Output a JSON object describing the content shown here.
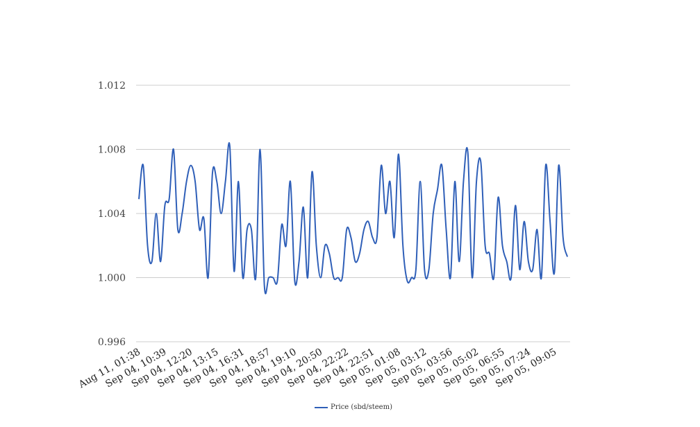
{
  "chart_data": {
    "type": "line",
    "title": "",
    "xlabel": "",
    "ylabel": "",
    "ylim": [
      0.996,
      1.012
    ],
    "y_ticks": [
      "0.996",
      "1.000",
      "1.004",
      "1.008",
      "1.012"
    ],
    "x_tick_labels": [
      "Aug 11, 01:38",
      "Sep 04, 10:39",
      "Sep 04, 12:20",
      "Sep 04, 13:15",
      "Sep 04, 16:31",
      "Sep 04, 18:57",
      "Sep 04, 19:10",
      "Sep 04, 20:50",
      "Sep 04, 22:22",
      "Sep 04, 22:51",
      "Sep 05, 01:08",
      "Sep 05, 03:12",
      "Sep 05, 03:56",
      "Sep 05, 05:02",
      "Sep 05, 06:55",
      "Sep 05, 07:24",
      "Sep 05, 09:05"
    ],
    "grid": true,
    "legend_position": "bottom",
    "series": [
      {
        "name": "Price (sbd/steem)",
        "color": "#2f5fb8",
        "values": [
          1.0049,
          1.007,
          1.002,
          1.001,
          1.004,
          1.001,
          1.0045,
          1.0049,
          1.008,
          1.003,
          1.004,
          1.006,
          1.007,
          1.006,
          1.003,
          1.0037,
          1.0,
          1.0065,
          1.006,
          1.004,
          1.006,
          1.0082,
          1.0004,
          1.006,
          1.0,
          1.003,
          1.003,
          1.0,
          1.008,
          0.9995,
          1.0,
          1.0,
          0.9998,
          1.0033,
          1.002,
          1.006,
          0.9998,
          1.001,
          1.0044,
          1.0,
          1.0066,
          1.002,
          1.0,
          1.002,
          1.0015,
          1.0,
          1.0,
          1.0,
          1.003,
          1.0025,
          1.001,
          1.0015,
          1.003,
          1.0035,
          1.0025,
          1.0025,
          1.007,
          1.004,
          1.006,
          1.0025,
          1.0077,
          1.002,
          0.9998,
          1.0,
          1.0005,
          1.006,
          1.0005,
          1.0005,
          1.004,
          1.0055,
          1.007,
          1.003,
          1.0,
          1.006,
          1.001,
          1.006,
          1.0078,
          1.0,
          1.006,
          1.0072,
          1.002,
          1.0015,
          1.0,
          1.005,
          1.002,
          1.001,
          1.0,
          1.0045,
          1.0005,
          1.0035,
          1.001,
          1.0005,
          1.003,
          1.0,
          1.007,
          1.0035,
          1.0003,
          1.007,
          1.0025,
          1.0013
        ]
      }
    ]
  }
}
